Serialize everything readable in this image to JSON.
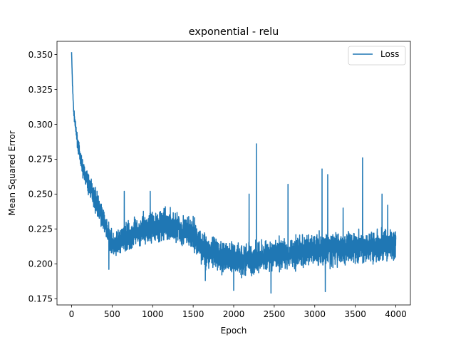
{
  "chart_data": {
    "type": "line",
    "title": "exponential - relu",
    "xlabel": "Epoch",
    "ylabel": "Mean Squared Error",
    "xlim": [
      -180,
      4180
    ],
    "ylim": [
      0.1705,
      0.3595
    ],
    "x_ticks": [
      0,
      500,
      1000,
      1500,
      2000,
      2500,
      3000,
      3500,
      4000
    ],
    "y_ticks": [
      0.175,
      0.2,
      0.225,
      0.25,
      0.275,
      0.3,
      0.325,
      0.35
    ],
    "x_tick_labels": [
      "0",
      "500",
      "1000",
      "1500",
      "2000",
      "2500",
      "3000",
      "3500",
      "4000"
    ],
    "y_tick_labels": [
      "0.175",
      "0.200",
      "0.225",
      "0.250",
      "0.275",
      "0.300",
      "0.325",
      "0.350"
    ],
    "grid": false,
    "legend_position": "top-right",
    "series": [
      {
        "name": "Loss",
        "color": "#1f77b4",
        "x": [
          0,
          10,
          25,
          50,
          75,
          100,
          150,
          200,
          250,
          300,
          350,
          400,
          450,
          500,
          550,
          600,
          700,
          800,
          900,
          1000,
          1100,
          1200,
          1300,
          1400,
          1500,
          1550,
          1600,
          1650,
          1700,
          1800,
          1900,
          2000,
          2100,
          2200,
          2300,
          2400,
          2500,
          2600,
          2700,
          2800,
          2900,
          3000,
          3100,
          3200,
          3300,
          3400,
          3500,
          3600,
          3700,
          3800,
          3900,
          4000
        ],
        "y": [
          0.352,
          0.33,
          0.31,
          0.297,
          0.287,
          0.278,
          0.266,
          0.258,
          0.252,
          0.245,
          0.238,
          0.23,
          0.222,
          0.214,
          0.212,
          0.216,
          0.22,
          0.222,
          0.225,
          0.227,
          0.228,
          0.227,
          0.226,
          0.223,
          0.22,
          0.217,
          0.213,
          0.21,
          0.208,
          0.206,
          0.205,
          0.204,
          0.203,
          0.204,
          0.205,
          0.205,
          0.206,
          0.207,
          0.208,
          0.209,
          0.209,
          0.21,
          0.21,
          0.211,
          0.211,
          0.212,
          0.212,
          0.212,
          0.213,
          0.213,
          0.213,
          0.214
        ],
        "noise_amplitude": [
          0.001,
          0.002,
          0.003,
          0.004,
          0.005,
          0.006,
          0.007,
          0.008,
          0.008,
          0.009,
          0.009,
          0.009,
          0.009,
          0.009,
          0.01,
          0.01,
          0.011,
          0.011,
          0.011,
          0.012,
          0.012,
          0.012,
          0.012,
          0.012,
          0.012,
          0.012,
          0.012,
          0.012,
          0.012,
          0.012,
          0.012,
          0.012,
          0.012,
          0.012,
          0.012,
          0.012,
          0.012,
          0.012,
          0.012,
          0.012,
          0.012,
          0.012,
          0.012,
          0.012,
          0.012,
          0.012,
          0.012,
          0.012,
          0.012,
          0.012,
          0.012,
          0.012
        ],
        "spikes": [
          {
            "x": 650,
            "y": 0.252
          },
          {
            "x": 970,
            "y": 0.252
          },
          {
            "x": 2190,
            "y": 0.25
          },
          {
            "x": 2280,
            "y": 0.286
          },
          {
            "x": 2670,
            "y": 0.257
          },
          {
            "x": 3090,
            "y": 0.268
          },
          {
            "x": 3160,
            "y": 0.264
          },
          {
            "x": 3350,
            "y": 0.24
          },
          {
            "x": 3590,
            "y": 0.276
          },
          {
            "x": 3830,
            "y": 0.25
          },
          {
            "x": 3900,
            "y": 0.242
          }
        ],
        "dips": [
          {
            "x": 460,
            "y": 0.196
          },
          {
            "x": 1650,
            "y": 0.188
          },
          {
            "x": 2000,
            "y": 0.181
          },
          {
            "x": 2460,
            "y": 0.179
          },
          {
            "x": 3130,
            "y": 0.18
          }
        ]
      }
    ]
  }
}
